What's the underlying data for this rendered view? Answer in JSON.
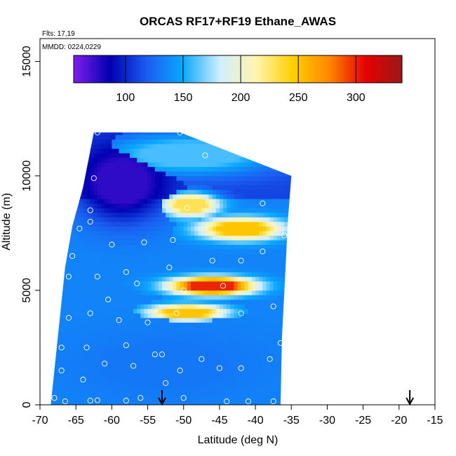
{
  "chart_data": {
    "type": "heatmap",
    "title": "ORCAS RF17+RF19 Ethane_AWAS",
    "annotation_flights": "Flts: 17,19",
    "annotation_dates": "MMDD: 0224,0229",
    "xlabel": "Latitude (deg N)",
    "ylabel": "Altitude (m)",
    "xlim": [
      -70,
      -15
    ],
    "ylim": [
      0,
      16000
    ],
    "xticks": [
      -70,
      -65,
      -60,
      -55,
      -50,
      -45,
      -40,
      -35,
      -30,
      -25,
      -20,
      -15
    ],
    "yticks": [
      0,
      5000,
      10000,
      15000
    ],
    "colorbar": {
      "range": [
        55,
        340
      ],
      "ticks": [
        100,
        150,
        200,
        250,
        300
      ],
      "placement": "top, inside plot",
      "colors": [
        "#7f1ff0",
        "#0000b0",
        "#1a5cf0",
        "#0aa8ff",
        "#cfeeff",
        "#fff5b0",
        "#ffd000",
        "#ff8800",
        "#e60000",
        "#9c1818"
      ]
    },
    "curtain_extent": {
      "left_edge": [
        [
          0,
          -68.5
        ],
        [
          3000,
          -67.5
        ],
        [
          6000,
          -66.5
        ],
        [
          7800,
          -65.5
        ],
        [
          9500,
          -64
        ],
        [
          11900,
          -62.5
        ]
      ],
      "right_edge": [
        [
          0,
          -36.5
        ],
        [
          3000,
          -36.3
        ],
        [
          6000,
          -35.8
        ],
        [
          8000,
          -35.5
        ],
        [
          10000,
          -35
        ],
        [
          11900,
          -50.5
        ]
      ]
    },
    "features": [
      {
        "name": "low-altitude blue",
        "lat": [
          -68,
          -37
        ],
        "alt": [
          0,
          3500
        ],
        "value": 130
      },
      {
        "name": "upper west dark band",
        "lat": [
          -65,
          -52
        ],
        "alt": [
          8000,
          11500
        ],
        "value": 75
      },
      {
        "name": "high altitude mixed",
        "lat": [
          -62,
          -36
        ],
        "alt": [
          10000,
          11900
        ],
        "value": 160
      },
      {
        "name": "mid-level red core",
        "lat": [
          -52,
          -40
        ],
        "alt": [
          4800,
          5600
        ],
        "value": 300
      },
      {
        "name": "mid-level yellow tongue",
        "lat": [
          -55,
          -44
        ],
        "alt": [
          3700,
          4400
        ],
        "value": 250
      },
      {
        "name": "upper yellow band",
        "lat": [
          -48,
          -36
        ],
        "alt": [
          7200,
          8200
        ],
        "value": 250
      },
      {
        "name": "upper yellow patch",
        "lat": [
          -53,
          -45
        ],
        "alt": [
          8200,
          9300
        ],
        "value": 230
      }
    ],
    "samples": [
      [
        -68,
        300
      ],
      [
        -66.5,
        150
      ],
      [
        -63,
        180
      ],
      [
        -62,
        200
      ],
      [
        -58,
        180
      ],
      [
        -56,
        300
      ],
      [
        -52.5,
        950
      ],
      [
        -50,
        300
      ],
      [
        -44,
        150
      ],
      [
        -41,
        150
      ],
      [
        -37.5,
        150
      ],
      [
        -67,
        1500
      ],
      [
        -64,
        1100
      ],
      [
        -61,
        1800
      ],
      [
        -57,
        1700
      ],
      [
        -53,
        2200
      ],
      [
        -50.5,
        1500
      ],
      [
        -45,
        1600
      ],
      [
        -42,
        1600
      ],
      [
        -38,
        2000
      ],
      [
        -67,
        2500
      ],
      [
        -63.5,
        2500
      ],
      [
        -58,
        2600
      ],
      [
        -54,
        2200
      ],
      [
        -47.5,
        2000
      ],
      [
        -36.5,
        2700
      ],
      [
        -66,
        3800
      ],
      [
        -63,
        4000
      ],
      [
        -59,
        3700
      ],
      [
        -55,
        3600
      ],
      [
        -51,
        4000
      ],
      [
        -45,
        4000
      ],
      [
        -42,
        4000
      ],
      [
        -37.5,
        4300
      ],
      [
        -60.5,
        4600
      ],
      [
        -56.5,
        5300
      ],
      [
        -50,
        5000
      ],
      [
        -44.5,
        5200
      ],
      [
        -66,
        5600
      ],
      [
        -62,
        5600
      ],
      [
        -58,
        5800
      ],
      [
        -52,
        6000
      ],
      [
        -46,
        6300
      ],
      [
        -42,
        6300
      ],
      [
        -39,
        6700
      ],
      [
        -65.5,
        6500
      ],
      [
        -60,
        7000
      ],
      [
        -55.5,
        7100
      ],
      [
        -51.5,
        7200
      ],
      [
        -36,
        7400
      ],
      [
        -64.5,
        7700
      ],
      [
        -63,
        8000
      ],
      [
        -49.5,
        8600
      ],
      [
        -39,
        8800
      ],
      [
        -63,
        8500
      ],
      [
        -62.5,
        9900
      ],
      [
        -47,
        10900
      ],
      [
        -50.5,
        11900
      ],
      [
        -62,
        11900
      ]
    ],
    "arrows_at_latitude": [
      -53,
      -18.5
    ]
  }
}
